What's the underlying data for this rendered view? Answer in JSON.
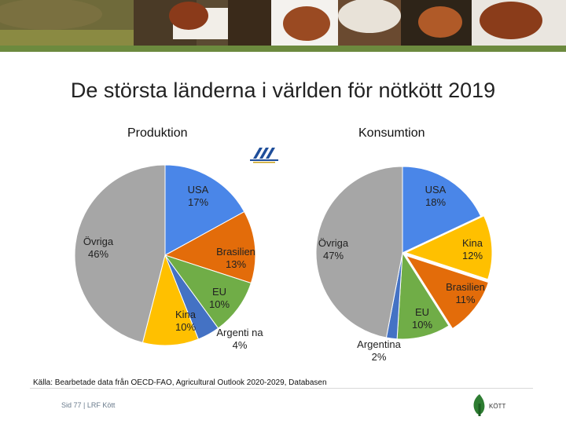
{
  "title": "De största länderna i världen för nötkött 2019",
  "source": "Källa: Bearbetade data från OECD-FAO, Agricultural Outlook 2020-2029, Databasen",
  "footer": "Sid 77 | LRF Kött",
  "logo": {
    "text": "KÖTT"
  },
  "colors": {
    "usa": "#4a86e8",
    "brasilien": "#e36c0a",
    "eu": "#70ad47",
    "kina_prod": "#ffc000",
    "kina_cons": "#ffc000",
    "argentina": "#4472c4",
    "ovriga": "#a6a6a6"
  },
  "chart_data": [
    {
      "type": "pie",
      "title": "Produktion",
      "slices": [
        {
          "label": "USA",
          "value": 17,
          "pct": "17%",
          "color": "#4a86e8"
        },
        {
          "label": "Brasilien",
          "value": 13,
          "pct": "13%",
          "color": "#e36c0a"
        },
        {
          "label": "EU",
          "value": 10,
          "pct": "10%",
          "color": "#70ad47"
        },
        {
          "label": "Argenti na",
          "value": 4,
          "pct": "4%",
          "color": "#4472c4"
        },
        {
          "label": "Kina",
          "value": 10,
          "pct": "10%",
          "color": "#ffc000"
        },
        {
          "label": "Övriga",
          "value": 46,
          "pct": "46%",
          "color": "#a6a6a6"
        }
      ]
    },
    {
      "type": "pie",
      "title": "Konsumtion",
      "slices": [
        {
          "label": "USA",
          "value": 18,
          "pct": "18%",
          "color": "#4a86e8"
        },
        {
          "label": "Kina",
          "value": 12,
          "pct": "12%",
          "color": "#ffc000"
        },
        {
          "label": "Brasilien",
          "value": 11,
          "pct": "11%",
          "color": "#e36c0a"
        },
        {
          "label": "EU",
          "value": 10,
          "pct": "10%",
          "color": "#70ad47"
        },
        {
          "label": "Argentina",
          "value": 2,
          "pct": "2%",
          "color": "#4472c4"
        },
        {
          "label": "Övriga",
          "value": 47,
          "pct": "47%",
          "color": "#a6a6a6"
        }
      ]
    }
  ]
}
